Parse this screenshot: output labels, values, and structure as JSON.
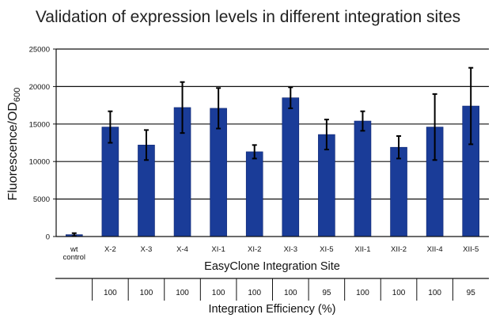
{
  "chart_data": {
    "type": "bar",
    "title": "Validation of expression levels in different integration sites",
    "xlabel": "EasyClone Integration Site",
    "ylabel_main": "Fluorescence/OD",
    "ylabel_sub": "600",
    "ylim": [
      0,
      25000
    ],
    "yticks": [
      0,
      5000,
      10000,
      15000,
      20000,
      25000
    ],
    "grid": true,
    "bar_color": "#1a3c98",
    "categories": [
      [
        "wt",
        "control"
      ],
      [
        "X-2"
      ],
      [
        "X-3"
      ],
      [
        "X-4"
      ],
      [
        "XI-1"
      ],
      [
        "XI-2"
      ],
      [
        "XI-3"
      ],
      [
        "XI-5"
      ],
      [
        "XII-1"
      ],
      [
        "XII-2"
      ],
      [
        "XII-4"
      ],
      [
        "XII-5"
      ]
    ],
    "values": [
      250,
      14600,
      12200,
      17200,
      17100,
      11300,
      18500,
      13600,
      15400,
      11900,
      14600,
      17400
    ],
    "error": [
      200,
      2100,
      2000,
      3400,
      2700,
      900,
      1400,
      2000,
      1300,
      1500,
      4400,
      5100
    ],
    "table": {
      "label": "Integration Efficiency (%)",
      "values": [
        "",
        "100",
        "100",
        "100",
        "100",
        "100",
        "100",
        "95",
        "100",
        "100",
        "100",
        "95"
      ]
    }
  }
}
